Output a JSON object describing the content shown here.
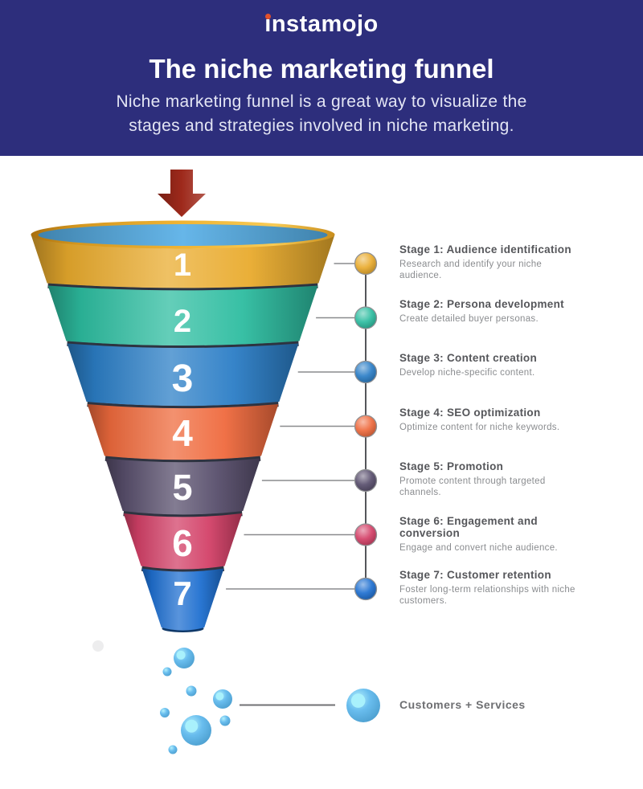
{
  "header": {
    "logo_text": "instamojo",
    "logo_dot_color": "#E2502B",
    "background_color": "#2D2E7C",
    "title": "The niche marketing funnel",
    "subtitle": "Niche marketing funnel is a great way to visualize the\nstages and strategies involved in niche marketing."
  },
  "funnel": {
    "arrow_color": "#9E291B",
    "mouth_color": "#55AEE6",
    "separator_color": "#2E3340",
    "stages": [
      {
        "number": "1",
        "color": "#E9AB2D",
        "title": "Stage 1: Audience identification",
        "description": "Research and identify your niche\naudience."
      },
      {
        "number": "2",
        "color": "#2DBDA0",
        "title": "Stage 2: Persona development",
        "description": "Create detailed buyer personas."
      },
      {
        "number": "3",
        "color": "#2B7EC6",
        "title": "Stage 3: Content creation",
        "description": "Develop niche-specific content."
      },
      {
        "number": "4",
        "color": "#EF6A3D",
        "title": "Stage 4: SEO optimization",
        "description": "Optimize content for niche keywords."
      },
      {
        "number": "5",
        "color": "#584E6C",
        "title": "Stage 5: Promotion",
        "description": "Promote content through targeted\nchannels."
      },
      {
        "number": "6",
        "color": "#D34067",
        "title": "Stage 6: Engagement and conversion",
        "description": "Engage and convert niche audience."
      },
      {
        "number": "7",
        "color": "#1E6FD0",
        "title": "Stage 7: Customer retention",
        "description": "Foster long-term relationships with niche\ncustomers."
      }
    ]
  },
  "outflow": {
    "label": "Customers + Services",
    "bubble_color": "#54B4EC"
  }
}
